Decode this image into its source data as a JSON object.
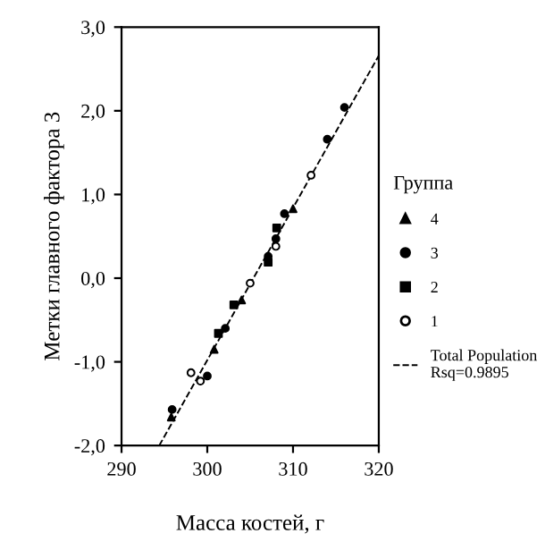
{
  "chart_data": {
    "type": "scatter",
    "xlabel": "Масса костей, г",
    "ylabel": "Метки главного фактора 3",
    "legend_title": "Группа",
    "legend": "right",
    "grid": false,
    "xlim": [
      290,
      320
    ],
    "xticks": [
      290,
      300,
      310,
      320
    ],
    "ylim": [
      -2.0,
      3.0
    ],
    "yticks": [
      {
        "value": -2,
        "label": "-2,0"
      },
      {
        "value": -1,
        "label": "-1,0"
      },
      {
        "value": 0,
        "label": "0,0"
      },
      {
        "value": 1,
        "label": "1,0"
      },
      {
        "value": 2,
        "label": "2,0"
      },
      {
        "value": 3,
        "label": "3,0"
      }
    ],
    "series": [
      {
        "name": "4",
        "color": "#000000",
        "marker": "triangle",
        "x": [
          295.8,
          300.8,
          304,
          310
        ],
        "values": [
          -1.66,
          -0.85,
          -0.26,
          0.83
        ]
      },
      {
        "name": "3",
        "color": "#000000",
        "marker": "circle",
        "x": [
          295.9,
          300,
          302.1,
          307.1,
          308,
          309,
          314,
          316
        ],
        "values": [
          -1.57,
          -1.17,
          -0.6,
          0.26,
          0.47,
          0.77,
          1.66,
          2.04
        ]
      },
      {
        "name": "2",
        "color": "#000000",
        "marker": "square",
        "x": [
          301.3,
          303.1,
          307.1,
          308.1
        ],
        "values": [
          -0.66,
          -0.32,
          0.19,
          0.6
        ]
      },
      {
        "name": "1",
        "color": "#ffffff",
        "marker": "circle",
        "x": [
          298.1,
          299.2,
          305,
          308,
          312.1
        ],
        "values": [
          -1.13,
          -1.23,
          -0.06,
          0.38,
          1.23
        ]
      },
      {
        "name": "Total Population\nRsq=0.9895",
        "type": "line",
        "line_style": "dashed",
        "color": "#000000",
        "x": [
          294.4,
          320
        ],
        "values": [
          -2.0,
          2.66
        ]
      }
    ]
  }
}
